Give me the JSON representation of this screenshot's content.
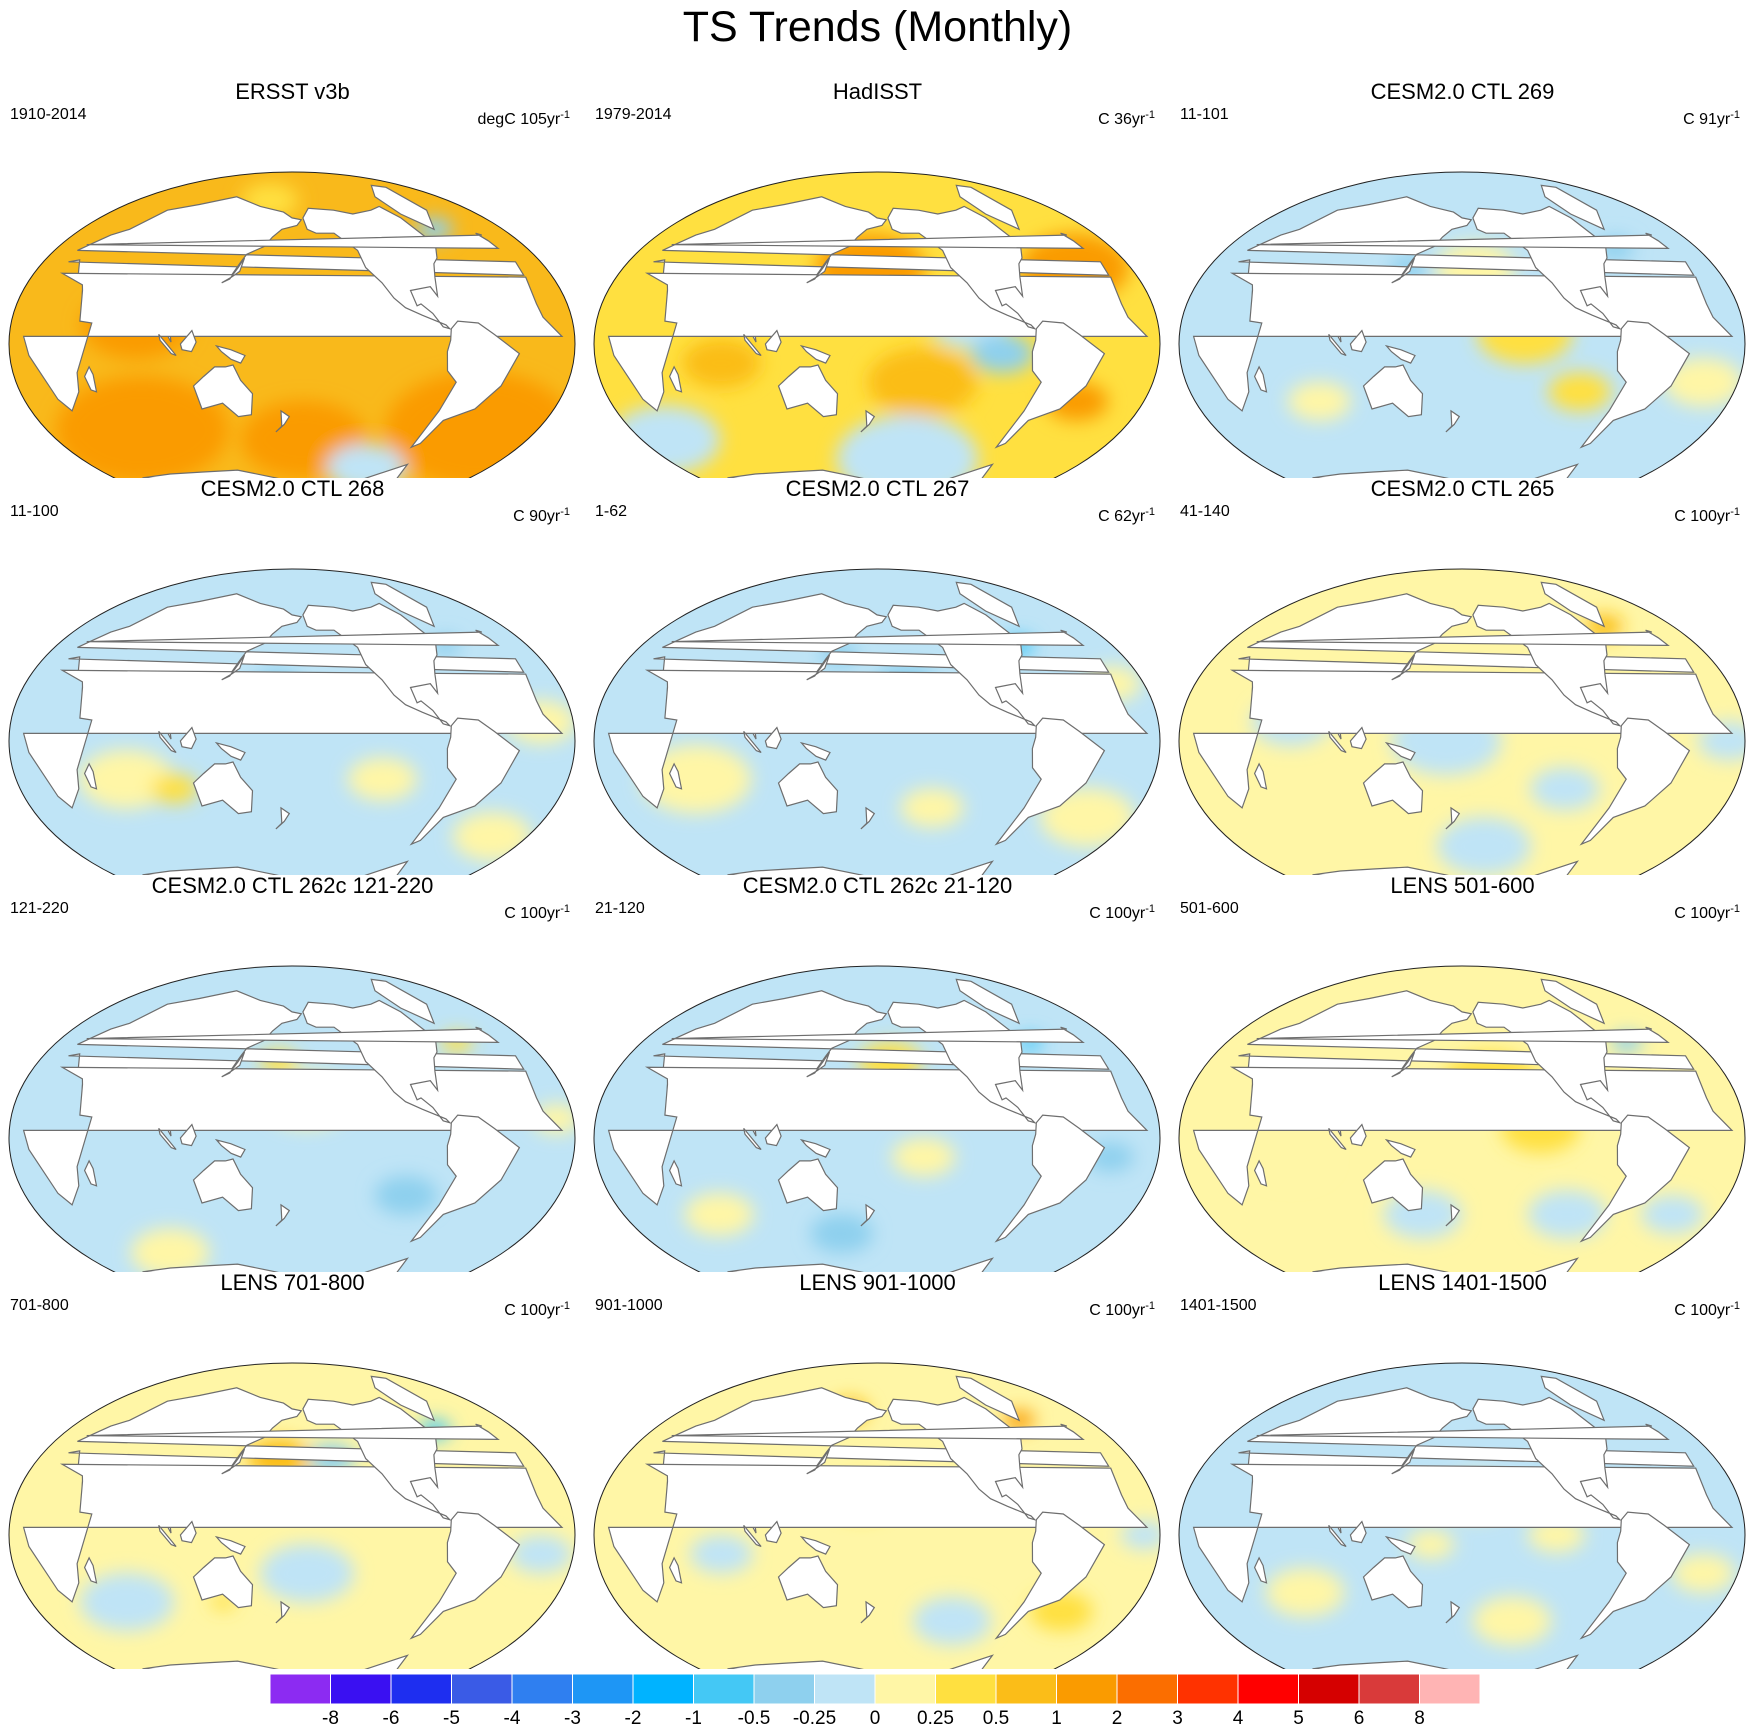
{
  "title": "TS Trends (Monthly)",
  "colors": {
    "land": "#ffffff",
    "coast": "#6e6e6e",
    "outline": "#222222"
  },
  "colorbar": {
    "colors": [
      "#8c2bf2",
      "#3a10f2",
      "#1e2ef0",
      "#3a5be6",
      "#2f7ff0",
      "#1e96f5",
      "#00b3ff",
      "#44c8f5",
      "#8ed0ee",
      "#bfe4f6",
      "#fff6a6",
      "#ffe040",
      "#fbbd18",
      "#fa9b00",
      "#fb6e00",
      "#ff3200",
      "#ff0000",
      "#d50000",
      "#d93a3a",
      "#ffb4b4"
    ],
    "labels": [
      "-8",
      "-6",
      "-5",
      "-4",
      "-3",
      "-2",
      "-1",
      "-0.5",
      "-0.25",
      "0",
      "0.25",
      "0.5",
      "1",
      "2",
      "3",
      "4",
      "5",
      "6",
      "8"
    ]
  },
  "panels": [
    {
      "title": "ERSST v3b",
      "left": "1910-2014",
      "right": "degC 105yr",
      "sup": "-1",
      "base": "#f9b91b",
      "blobs": [
        {
          "lon": 60,
          "lat": -45,
          "r": 55,
          "c": "#fa9b00"
        },
        {
          "lon": -30,
          "lat": -45,
          "r": 60,
          "c": "#fa9b00"
        },
        {
          "lon": 80,
          "lat": 10,
          "r": 35,
          "c": "#fa9b00"
        },
        {
          "lon": -170,
          "lat": -50,
          "r": 40,
          "c": "#fa9b00"
        },
        {
          "lon": -40,
          "lat": 60,
          "r": 12,
          "c": "#8ed0ee"
        },
        {
          "lon": -100,
          "lat": -65,
          "r": 25,
          "c": "#bfe4f6"
        },
        {
          "lon": 150,
          "lat": 75,
          "r": 18,
          "c": "#ffe040"
        }
      ]
    },
    {
      "title": "HadISST",
      "left": "1979-2014",
      "right": "C 36yr",
      "sup": "-1",
      "base": "#ffe040",
      "blobs": [
        {
          "lon": 175,
          "lat": 40,
          "r": 35,
          "c": "#fa9b00"
        },
        {
          "lon": -30,
          "lat": 40,
          "r": 35,
          "c": "#fa9b00"
        },
        {
          "lon": -150,
          "lat": -20,
          "r": 35,
          "c": "#fbbd18"
        },
        {
          "lon": -120,
          "lat": 10,
          "r": 25,
          "c": "#bfe4f6"
        },
        {
          "lon": -100,
          "lat": -5,
          "r": 20,
          "c": "#8ed0ee"
        },
        {
          "lon": -150,
          "lat": -60,
          "r": 45,
          "c": "#bfe4f6"
        },
        {
          "lon": 0,
          "lat": -50,
          "r": 35,
          "c": "#bfe4f6"
        },
        {
          "lon": -40,
          "lat": -30,
          "r": 20,
          "c": "#fa9b00"
        },
        {
          "lon": 80,
          "lat": -10,
          "r": 25,
          "c": "#fbbd18"
        }
      ]
    },
    {
      "title": "CESM2.0 CTL 269",
      "left": "11-101",
      "right": "C 91yr",
      "sup": "-1",
      "base": "#bfe4f6",
      "blobs": [
        {
          "lon": -140,
          "lat": 5,
          "r": 30,
          "c": "#ffe040"
        },
        {
          "lon": -170,
          "lat": 40,
          "r": 25,
          "c": "#fff6a6"
        },
        {
          "lon": -100,
          "lat": -25,
          "r": 20,
          "c": "#ffe040"
        },
        {
          "lon": -20,
          "lat": -20,
          "r": 25,
          "c": "#fff6a6"
        },
        {
          "lon": 80,
          "lat": -30,
          "r": 20,
          "c": "#fff6a6"
        },
        {
          "lon": -50,
          "lat": 50,
          "r": 12,
          "c": "#8ed0ee"
        },
        {
          "lon": 140,
          "lat": 40,
          "r": 12,
          "c": "#8ed0ee"
        }
      ]
    },
    {
      "title": "CESM2.0 CTL 268",
      "left": "11-100",
      "right": "C 90yr",
      "sup": "-1",
      "base": "#bfe4f6",
      "blobs": [
        {
          "lon": 70,
          "lat": -20,
          "r": 30,
          "c": "#fff6a6"
        },
        {
          "lon": 100,
          "lat": -25,
          "r": 15,
          "c": "#ffe040"
        },
        {
          "lon": -120,
          "lat": -20,
          "r": 22,
          "c": "#fff6a6"
        },
        {
          "lon": -20,
          "lat": 10,
          "r": 22,
          "c": "#fff6a6"
        },
        {
          "lon": -10,
          "lat": -50,
          "r": 25,
          "c": "#fff6a6"
        },
        {
          "lon": -50,
          "lat": 50,
          "r": 10,
          "c": "#8ed0ee"
        },
        {
          "lon": 170,
          "lat": 30,
          "r": 15,
          "c": "#8ed0ee"
        }
      ]
    },
    {
      "title": "CESM2.0 CTL 267",
      "left": "1-62",
      "right": "C 62yr",
      "sup": "-1",
      "base": "#bfe4f6",
      "blobs": [
        {
          "lon": -160,
          "lat": 30,
          "r": 20,
          "c": "#8ed0ee"
        },
        {
          "lon": 60,
          "lat": -20,
          "r": 35,
          "c": "#fff6a6"
        },
        {
          "lon": -140,
          "lat": -35,
          "r": 20,
          "c": "#fff6a6"
        },
        {
          "lon": -20,
          "lat": -40,
          "r": 30,
          "c": "#fff6a6"
        },
        {
          "lon": -15,
          "lat": 30,
          "r": 18,
          "c": "#fff6a6"
        },
        {
          "lon": -60,
          "lat": 50,
          "r": 10,
          "c": "#44c8f5"
        },
        {
          "lon": 150,
          "lat": 45,
          "r": 12,
          "c": "#8ed0ee"
        }
      ]
    },
    {
      "title": "CESM2.0 CTL 265",
      "left": "41-140",
      "right": "C 100yr",
      "sup": "-1",
      "base": "#fff6a6",
      "blobs": [
        {
          "lon": 170,
          "lat": 0,
          "r": 35,
          "c": "#bfe4f6"
        },
        {
          "lon": 70,
          "lat": 10,
          "r": 25,
          "c": "#bfe4f6"
        },
        {
          "lon": -110,
          "lat": -25,
          "r": 22,
          "c": "#bfe4f6"
        },
        {
          "lon": -10,
          "lat": 0,
          "r": 20,
          "c": "#bfe4f6"
        },
        {
          "lon": -40,
          "lat": 60,
          "r": 12,
          "c": "#fbbd18"
        },
        {
          "lon": -160,
          "lat": -55,
          "r": 30,
          "c": "#bfe4f6"
        }
      ]
    },
    {
      "title": "CESM2.0 CTL 262c 121-220",
      "left": "121-220",
      "right": "C 100yr",
      "sup": "-1",
      "base": "#bfe4f6",
      "blobs": [
        {
          "lon": -170,
          "lat": 20,
          "r": 28,
          "c": "#fff6a6"
        },
        {
          "lon": 170,
          "lat": 40,
          "r": 12,
          "c": "#ffe040"
        },
        {
          "lon": -40,
          "lat": 50,
          "r": 10,
          "c": "#ffe040"
        },
        {
          "lon": 60,
          "lat": -60,
          "r": 25,
          "c": "#fff6a6"
        },
        {
          "lon": -100,
          "lat": -30,
          "r": 20,
          "c": "#8ed0ee"
        },
        {
          "lon": -10,
          "lat": 10,
          "r": 15,
          "c": "#fff6a6"
        }
      ]
    },
    {
      "title": "CESM2.0 CTL 262c 21-120",
      "left": "21-120",
      "right": "C 100yr",
      "sup": "-1",
      "base": "#bfe4f6",
      "blobs": [
        {
          "lon": -170,
          "lat": 40,
          "r": 20,
          "c": "#ffe040"
        },
        {
          "lon": -150,
          "lat": -10,
          "r": 20,
          "c": "#fff6a6"
        },
        {
          "lon": 60,
          "lat": -40,
          "r": 22,
          "c": "#fff6a6"
        },
        {
          "lon": -30,
          "lat": -10,
          "r": 15,
          "c": "#8ed0ee"
        },
        {
          "lon": -50,
          "lat": 50,
          "r": 8,
          "c": "#44c8f5"
        },
        {
          "lon": 150,
          "lat": -50,
          "r": 20,
          "c": "#8ed0ee"
        }
      ]
    },
    {
      "title": "LENS 501-600",
      "left": "501-600",
      "right": "C 100yr",
      "sup": "-1",
      "base": "#fff6a6",
      "blobs": [
        {
          "lon": -160,
          "lat": 30,
          "r": 30,
          "c": "#ffe040"
        },
        {
          "lon": -130,
          "lat": 5,
          "r": 25,
          "c": "#ffe040"
        },
        {
          "lon": 70,
          "lat": -10,
          "r": 25,
          "c": "#fff6a6"
        },
        {
          "lon": -100,
          "lat": -40,
          "r": 25,
          "c": "#bfe4f6"
        },
        {
          "lon": 150,
          "lat": -40,
          "r": 25,
          "c": "#bfe4f6"
        },
        {
          "lon": -20,
          "lat": -40,
          "r": 20,
          "c": "#bfe4f6"
        },
        {
          "lon": -40,
          "lat": 50,
          "r": 10,
          "c": "#8ed0ee"
        }
      ]
    },
    {
      "title": "LENS 701-800",
      "left": "701-800",
      "right": "C 100yr",
      "sup": "-1",
      "base": "#fff6a6",
      "blobs": [
        {
          "lon": 170,
          "lat": 40,
          "r": 20,
          "c": "#fbbd18"
        },
        {
          "lon": -150,
          "lat": 40,
          "r": 15,
          "c": "#8ed0ee"
        },
        {
          "lon": -170,
          "lat": -20,
          "r": 30,
          "c": "#bfe4f6"
        },
        {
          "lon": 60,
          "lat": -35,
          "r": 30,
          "c": "#bfe4f6"
        },
        {
          "lon": -20,
          "lat": -10,
          "r": 20,
          "c": "#bfe4f6"
        },
        {
          "lon": -50,
          "lat": 55,
          "r": 10,
          "c": "#44c8f5"
        },
        {
          "lon": 130,
          "lat": -35,
          "r": 8,
          "c": "#ffe040"
        }
      ]
    },
    {
      "title": "LENS 901-1000",
      "left": "901-1000",
      "right": "C 100yr",
      "sup": "-1",
      "base": "#fff6a6",
      "blobs": [
        {
          "lon": 80,
          "lat": -10,
          "r": 20,
          "c": "#bfe4f6"
        },
        {
          "lon": -120,
          "lat": -45,
          "r": 25,
          "c": "#bfe4f6"
        },
        {
          "lon": -10,
          "lat": 0,
          "r": 15,
          "c": "#bfe4f6"
        },
        {
          "lon": 170,
          "lat": 20,
          "r": 20,
          "c": "#ffe040"
        },
        {
          "lon": -40,
          "lat": -40,
          "r": 20,
          "c": "#ffe040"
        },
        {
          "lon": -40,
          "lat": 60,
          "r": 10,
          "c": "#fa9b00"
        },
        {
          "lon": 150,
          "lat": 65,
          "r": 12,
          "c": "#fbbd18"
        }
      ]
    },
    {
      "title": "LENS 1401-1500",
      "left": "1401-1500",
      "right": "C 100yr",
      "sup": "-1",
      "base": "#bfe4f6",
      "blobs": [
        {
          "lon": -170,
          "lat": 20,
          "r": 22,
          "c": "#fff6a6"
        },
        {
          "lon": -140,
          "lat": -45,
          "r": 25,
          "c": "#fff6a6"
        },
        {
          "lon": 70,
          "lat": -30,
          "r": 25,
          "c": "#fff6a6"
        },
        {
          "lon": -20,
          "lat": -20,
          "r": 20,
          "c": "#fff6a6"
        },
        {
          "lon": -120,
          "lat": 0,
          "r": 18,
          "c": "#fff6a6"
        },
        {
          "lon": 160,
          "lat": -5,
          "r": 15,
          "c": "#fff6a6"
        }
      ]
    }
  ]
}
